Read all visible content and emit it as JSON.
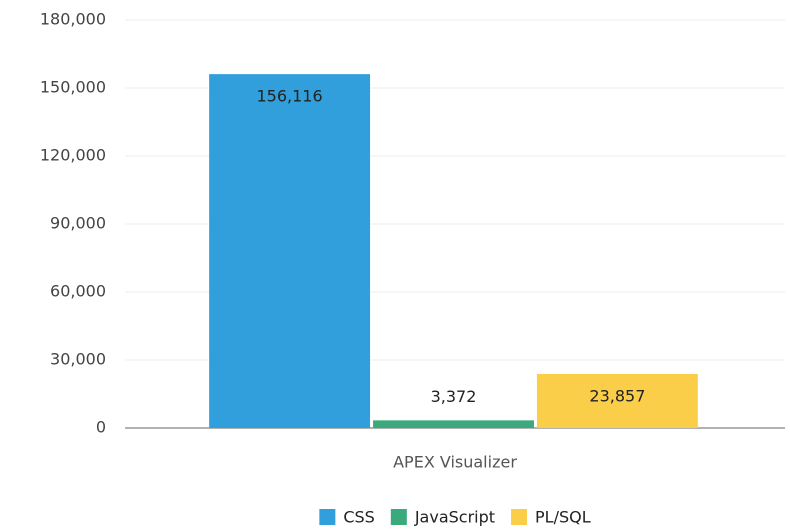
{
  "chart_data": {
    "type": "bar",
    "categories": [
      "APEX Visualizer"
    ],
    "series": [
      {
        "name": "CSS",
        "color": "#309fdb",
        "values": [
          156116
        ],
        "value_labels": [
          "156,116"
        ]
      },
      {
        "name": "JavaScript",
        "color": "#3aa97c",
        "values": [
          3372
        ],
        "value_labels": [
          "3,372"
        ]
      },
      {
        "name": "PL/SQL",
        "color": "#fbce4a",
        "values": [
          23857
        ],
        "value_labels": [
          "23,857"
        ]
      }
    ],
    "ylim": [
      0,
      180000
    ],
    "yticks": [
      0,
      {
        "value": 30000,
        "label": "30,000"
      },
      {
        "value": 60000,
        "label": "60,000"
      },
      {
        "value": 90000,
        "label": "90,000"
      },
      {
        "value": 120000,
        "label": "120,000"
      },
      {
        "value": 150000,
        "label": "150,000"
      },
      {
        "value": 180000,
        "label": "180,000"
      }
    ],
    "grid": true,
    "legend": "bottom"
  }
}
